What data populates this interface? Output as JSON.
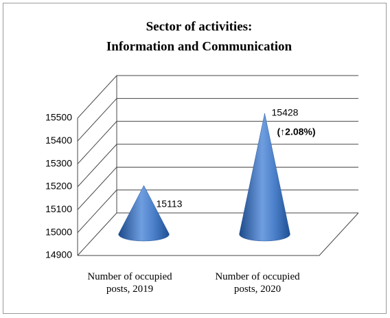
{
  "chart_data": {
    "type": "cone",
    "title": [
      "Sector of activities:",
      "Information and Communication"
    ],
    "categories": [
      "Number of occupied posts, 2019",
      "Number of occupied posts, 2020"
    ],
    "values": [
      15113,
      15428
    ],
    "annotations": [
      "(↑2.08%)"
    ],
    "color": "#3f72b8",
    "ylim": [
      14900,
      15500
    ],
    "yticks": [
      14900,
      15000,
      15100,
      15200,
      15300,
      15400,
      15500
    ],
    "grid": true
  }
}
